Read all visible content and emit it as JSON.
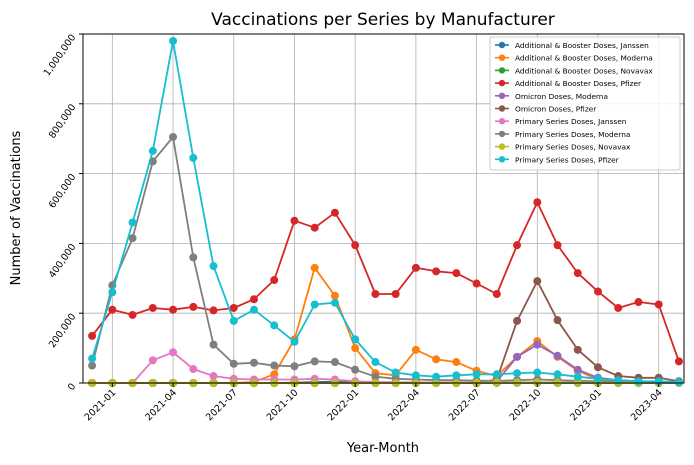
{
  "chart_data": {
    "type": "line",
    "title": "Vaccinations per Series by Manufacturer",
    "xlabel": "Year-Month",
    "ylabel": "Number of Vaccinations",
    "ylim": [
      0,
      1000000
    ],
    "yticks": [
      0,
      200000,
      400000,
      600000,
      800000,
      1000000
    ],
    "ytick_labels": [
      "0",
      "200,000",
      "400,000",
      "600,000",
      "800,000",
      "1,000,000"
    ],
    "grid": true,
    "legend_position": "top-right",
    "x": [
      "2020-12",
      "2021-01",
      "2021-02",
      "2021-03",
      "2021-04",
      "2021-05",
      "2021-06",
      "2021-07",
      "2021-08",
      "2021-09",
      "2021-10",
      "2021-11",
      "2021-12",
      "2022-01",
      "2022-02",
      "2022-03",
      "2022-04",
      "2022-05",
      "2022-06",
      "2022-07",
      "2022-08",
      "2022-09",
      "2022-10",
      "2022-11",
      "2022-12",
      "2023-01",
      "2023-02",
      "2023-03",
      "2023-04",
      "2023-05"
    ],
    "xtick_labels": [
      "2021-01",
      "2021-04",
      "2021-07",
      "2021-10",
      "2022-01",
      "2022-04",
      "2022-07",
      "2022-10",
      "2023-01",
      "2023-04"
    ],
    "series": [
      {
        "name": "Additional & Booster Doses, Janssen",
        "color": "#1f77b4",
        "values": [
          0,
          0,
          0,
          0,
          0,
          0,
          0,
          0,
          0,
          0,
          1000,
          3000,
          4000,
          2000,
          1000,
          1000,
          1000,
          1000,
          1000,
          1000,
          500,
          500,
          500,
          500,
          300,
          200,
          200,
          200,
          100,
          100
        ]
      },
      {
        "name": "Additional & Booster Doses, Moderna",
        "color": "#ff7f0e",
        "values": [
          0,
          0,
          0,
          0,
          0,
          0,
          0,
          0,
          3000,
          25000,
          125000,
          330000,
          250000,
          100000,
          28000,
          22000,
          95000,
          68000,
          60000,
          35000,
          20000,
          75000,
          120000,
          75000,
          35000,
          10000,
          5000,
          3000,
          2000,
          1000
        ]
      },
      {
        "name": "Additional & Booster Doses, Novavax",
        "color": "#2ca02c",
        "values": [
          0,
          0,
          0,
          0,
          0,
          0,
          0,
          0,
          0,
          0,
          0,
          0,
          0,
          0,
          0,
          0,
          0,
          0,
          0,
          0,
          500,
          1000,
          1000,
          500,
          300,
          200,
          100,
          100,
          100,
          100
        ]
      },
      {
        "name": "Additional & Booster Doses, Pfizer",
        "color": "#d62728",
        "values": [
          135000,
          210000,
          195000,
          215000,
          210000,
          218000,
          208000,
          215000,
          240000,
          295000,
          465000,
          445000,
          488000,
          395000,
          255000,
          255000,
          330000,
          320000,
          315000,
          285000,
          255000,
          395000,
          518000,
          395000,
          315000,
          262000,
          215000,
          232000,
          225000,
          62000
        ]
      },
      {
        "name": "Omicron Doses, Moderna",
        "color": "#9467bd",
        "values": [
          0,
          0,
          0,
          0,
          0,
          0,
          0,
          0,
          0,
          0,
          0,
          0,
          0,
          0,
          0,
          0,
          0,
          0,
          0,
          0,
          5000,
          75000,
          110000,
          78000,
          38000,
          15000,
          8000,
          5000,
          3000,
          2000
        ]
      },
      {
        "name": "Omicron Doses, Pfizer",
        "color": "#8c564b",
        "values": [
          0,
          0,
          0,
          0,
          0,
          0,
          0,
          0,
          0,
          0,
          0,
          0,
          0,
          0,
          0,
          0,
          0,
          0,
          0,
          0,
          10000,
          178000,
          292000,
          180000,
          95000,
          45000,
          20000,
          15000,
          15000,
          5000
        ]
      },
      {
        "name": "Primary Series Doses, Janssen",
        "color": "#e377c2",
        "values": [
          0,
          0,
          0,
          65000,
          88000,
          40000,
          20000,
          12000,
          10000,
          10000,
          10000,
          12000,
          10000,
          5000,
          3000,
          2000,
          2000,
          1000,
          1000,
          1000,
          1000,
          1000,
          1000,
          1000,
          500,
          500,
          300,
          300,
          200,
          100
        ]
      },
      {
        "name": "Primary Series Doses, Moderna",
        "color": "#7f7f7f",
        "values": [
          50000,
          280000,
          415000,
          635000,
          705000,
          360000,
          110000,
          55000,
          58000,
          50000,
          48000,
          62000,
          60000,
          38000,
          18000,
          12000,
          10000,
          8000,
          8000,
          7000,
          6000,
          8000,
          10000,
          8000,
          6000,
          5000,
          4000,
          3000,
          3000,
          2000
        ]
      },
      {
        "name": "Primary Series Doses, Novavax",
        "color": "#bcbd22",
        "values": [
          0,
          0,
          0,
          0,
          0,
          0,
          0,
          0,
          0,
          0,
          0,
          0,
          0,
          0,
          0,
          0,
          0,
          0,
          0,
          1000,
          2000,
          2000,
          2000,
          2000,
          1000,
          1000,
          1000,
          500,
          500,
          300
        ]
      },
      {
        "name": "Primary Series Doses, Pfizer",
        "color": "#17becf",
        "values": [
          70000,
          260000,
          460000,
          665000,
          980000,
          645000,
          335000,
          178000,
          210000,
          165000,
          118000,
          225000,
          230000,
          125000,
          60000,
          30000,
          22000,
          18000,
          22000,
          25000,
          25000,
          28000,
          30000,
          25000,
          18000,
          12000,
          8000,
          5000,
          5000,
          3000
        ]
      }
    ]
  }
}
